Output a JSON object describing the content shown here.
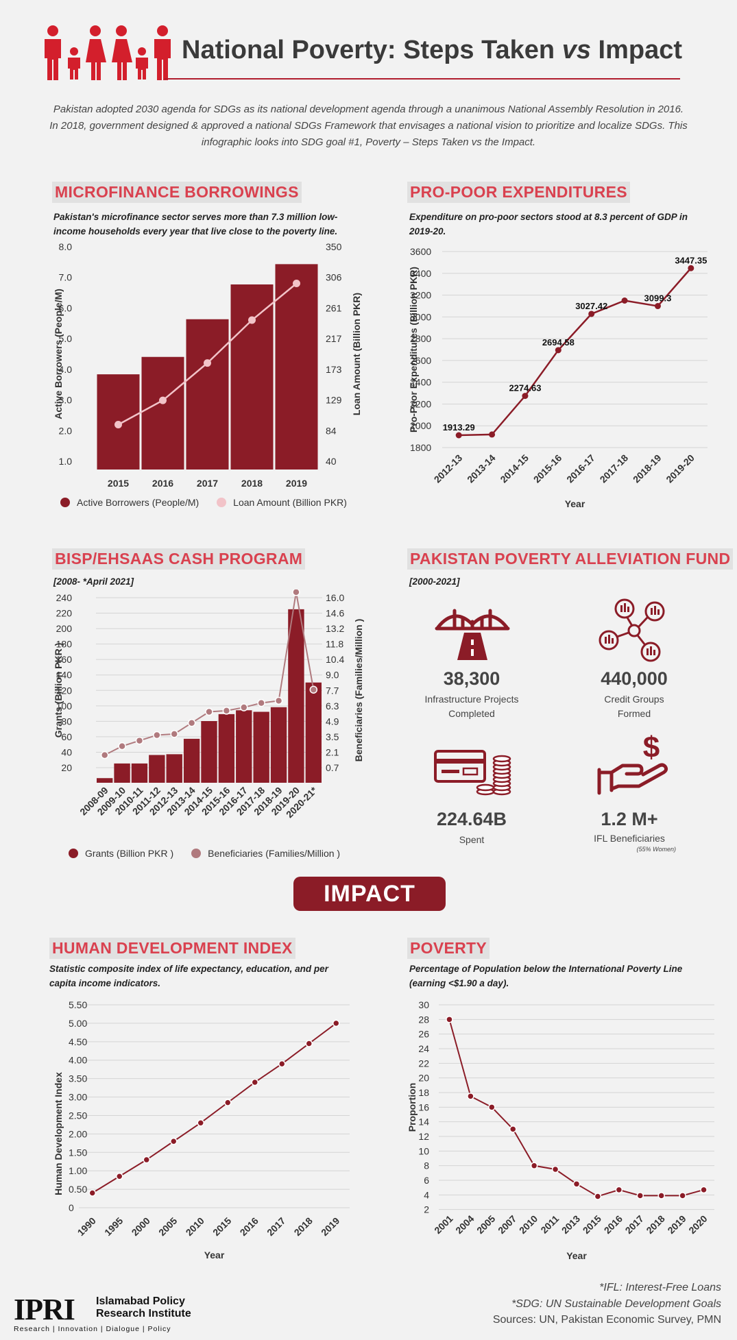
{
  "header": {
    "title_a": "National Poverty: Steps Taken ",
    "title_vs": "vs",
    "title_b": " Impact",
    "intro": "Pakistan adopted 2030 agenda for SDGs as its national development agenda through a unanimous National Assembly Resolution in 2016. In 2018, government designed & approved a national SDGs Framework that envisages a national vision to prioritize and localize SDGs. This infographic looks into SDG goal #1, Poverty – Steps Taken vs the Impact."
  },
  "microfinance": {
    "title": "MICROFINANCE BORROWINGS",
    "subtitle": "Pakistan's microfinance sector serves more than 7.3 million low-income households every year that live close to the poverty line."
  },
  "propoor": {
    "title": "PRO-POOR EXPENDITURES",
    "subtitle": "Expenditure on pro-poor sectors stood at 8.3 percent of GDP in 2019-20."
  },
  "bisp": {
    "title": "BISP/EHSAAS CASH PROGRAM",
    "subtitle": "[2008- *April 2021]"
  },
  "ppaf": {
    "title": "PAKISTAN POVERTY ALLEVIATION FUND",
    "subtitle": "[2000-2021]",
    "stats": [
      {
        "value": "38,300",
        "caption": "Infrastructure Projects Completed",
        "icon": "bridge-icon"
      },
      {
        "value": "440,000",
        "caption": "Credit Groups Formed",
        "icon": "network-icon"
      },
      {
        "value": "224.64B",
        "caption": "Spent",
        "icon": "card-coins-icon"
      },
      {
        "value": "1.2 M+",
        "caption": "IFL Beneficiaries",
        "note": "(55% Women)",
        "icon": "hand-dollar-icon"
      }
    ]
  },
  "impact_label": "IMPACT",
  "hdi": {
    "title": "HUMAN DEVELOPMENT INDEX",
    "subtitle": "Statistic composite index of life expectancy, education, and per capita income indicators."
  },
  "poverty": {
    "title": "POVERTY",
    "subtitle": "Percentage of Population below the International Poverty Line (earning <$1.90 a day)."
  },
  "footer": {
    "note1": "*IFL: Interest-Free Loans",
    "note2": "*SDG: UN Sustainable Development Goals",
    "sources": "Sources: UN, Pakistan Economic Survey, PMN",
    "logo": "IPRI",
    "org_line1": "Islamabad Policy",
    "org_line2": "Research Institute",
    "tagline": "Research | Innovation | Dialogue | Policy"
  },
  "colors": {
    "primary": "#8b1c27",
    "line_light": "#f2c3c8",
    "line_mauve": "#b07a7e",
    "accent": "#d9414f"
  },
  "chart_data": [
    {
      "id": "microfinance",
      "type": "bar",
      "categories": [
        "2015",
        "2016",
        "2017",
        "2018",
        "2019"
      ],
      "series": [
        {
          "name": "Active Borrowers (People/M)",
          "type": "bar",
          "axis": "left",
          "values": [
            3.6,
            4.2,
            5.5,
            6.7,
            7.4
          ]
        },
        {
          "name": "Loan Amount (Billion PKR)",
          "type": "line",
          "axis": "right",
          "values": [
            93,
            128,
            182,
            244,
            297
          ]
        }
      ],
      "ylabel": "Active Borrowers (People/M)",
      "y2label": "Loan Amount (Billion PKR)",
      "ylim": [
        0.6,
        8.0
      ],
      "yticks": [
        "8.0",
        "7.0",
        "6.0",
        "5.0",
        "4.0",
        "3.0",
        "2.0",
        "1.0"
      ],
      "y2lim": [
        40,
        350
      ],
      "y2ticks": [
        "350",
        "306",
        "261",
        "217",
        "173",
        "129",
        "84",
        "40"
      ],
      "legend": "bottom"
    },
    {
      "id": "propoor",
      "type": "line",
      "x": [
        "2012-13",
        "2013-14",
        "2014-15",
        "2015-16",
        "2016-17",
        "2017-18",
        "2018-19",
        "2019-20"
      ],
      "values": [
        1913.29,
        1920,
        2274.63,
        2694.58,
        3027.42,
        3150,
        3099.3,
        3447.35
      ],
      "labels": [
        "1913.29",
        "",
        "2274.63",
        "2694.58",
        "3027.42",
        "",
        "3099.3",
        "3447.35"
      ],
      "xlabel": "Year",
      "ylabel": "Pro-Poor Expenditures (Billion PKR)",
      "ylim": [
        1800,
        3600
      ],
      "yticks": [
        "3600",
        "3400",
        "3200",
        "3000",
        "2800",
        "2600",
        "2400",
        "2200",
        "2000",
        "1800"
      ]
    },
    {
      "id": "bisp",
      "type": "bar",
      "categories": [
        "2008-09",
        "2009-10",
        "2010-11",
        "2011-12",
        "2012-13",
        "2013-14",
        "2014-15",
        "2015-16",
        "2016-17",
        "2017-18",
        "2018-19",
        "2019-20",
        "2020-21*"
      ],
      "series": [
        {
          "name": "Grants (Billion PKR )",
          "type": "bar",
          "axis": "left",
          "values": [
            6,
            25,
            25,
            36,
            37,
            57,
            80,
            89,
            94,
            92,
            98,
            225,
            130
          ]
        },
        {
          "name": "Beneficiaries (Families/Million )",
          "type": "line",
          "axis": "right",
          "values": [
            1.8,
            2.6,
            3.1,
            3.6,
            3.7,
            4.7,
            5.7,
            5.8,
            6.1,
            6.5,
            6.7,
            16.5,
            7.7
          ]
        }
      ],
      "ylabel": "Grants (Billion PKR )",
      "y2label": "Beneficiaries (Families/Million )",
      "ylim": [
        0,
        240
      ],
      "yticks": [
        "240",
        "220",
        "200",
        "180",
        "160",
        "140",
        "120",
        "100",
        "80",
        "60",
        "40",
        "20"
      ],
      "y2lim": [
        -0.7,
        16.0
      ],
      "y2ticks": [
        "16.0",
        "14.6",
        "13.2",
        "11.8",
        "10.4",
        "9.0",
        "7.7",
        "6.3",
        "4.9",
        "3.5",
        "2.1",
        "0.7"
      ],
      "legend": "bottom"
    },
    {
      "id": "hdi",
      "type": "line",
      "x": [
        "1990",
        "1995",
        "2000",
        "2005",
        "2010",
        "2015",
        "2016",
        "2017",
        "2018",
        "2019"
      ],
      "values": [
        0.4,
        0.85,
        1.3,
        1.8,
        2.3,
        2.85,
        3.4,
        3.9,
        4.45,
        5.0
      ],
      "xlabel": "Year",
      "ylabel": "Human Development Index",
      "ylim": [
        0,
        5.5
      ],
      "yticks": [
        "5.50",
        "5.00",
        "4.50",
        "4.00",
        "3.50",
        "3.00",
        "2.50",
        "2.00",
        "1.50",
        "1.00",
        "0.50",
        "0"
      ]
    },
    {
      "id": "poverty",
      "type": "line",
      "x": [
        "2001",
        "2004",
        "2005",
        "2007",
        "2010",
        "2011",
        "2013",
        "2015",
        "2016",
        "2017",
        "2018",
        "2019",
        "2020"
      ],
      "values": [
        28,
        17.5,
        16,
        13,
        8,
        7.5,
        5.5,
        3.8,
        4.7,
        3.9,
        3.9,
        3.9,
        4.7
      ],
      "xlabel": "Year",
      "ylabel": "Proportion",
      "ylim": [
        0,
        30
      ],
      "yticks": [
        "30",
        "28",
        "26",
        "24",
        "22",
        "20",
        "18",
        "16",
        "14",
        "12",
        "10",
        "8",
        "6",
        "4",
        "2"
      ]
    }
  ]
}
